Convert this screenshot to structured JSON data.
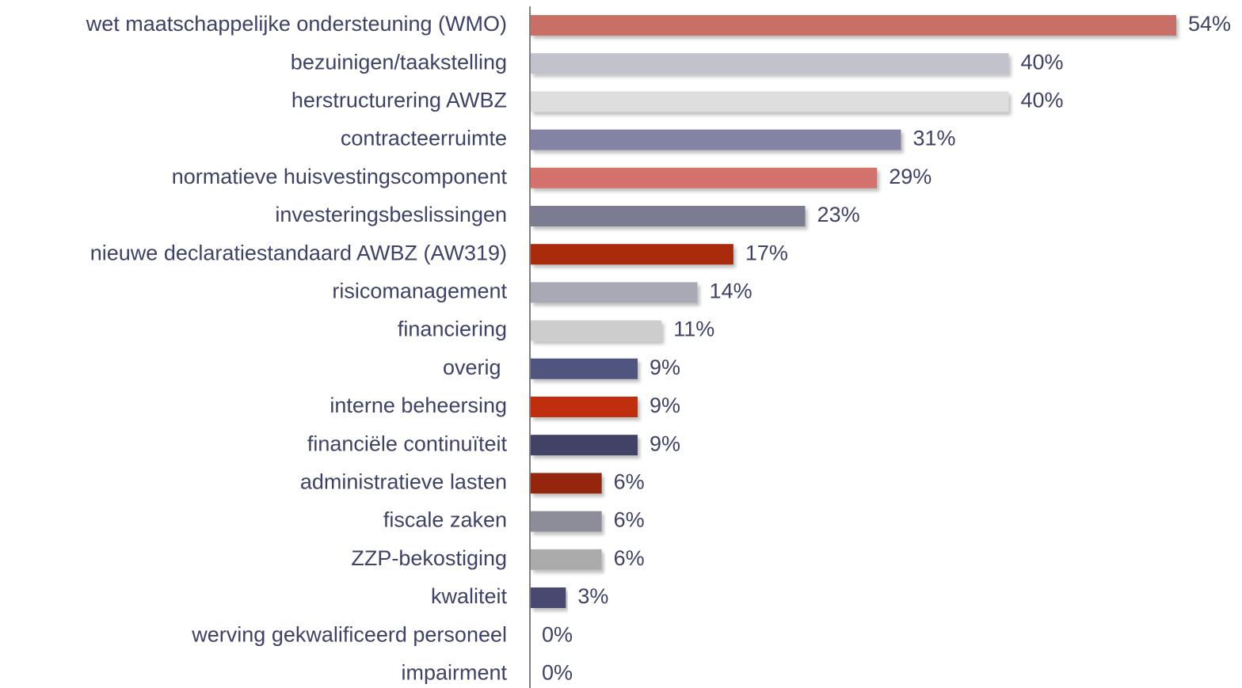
{
  "chart_data": {
    "type": "bar",
    "orientation": "horizontal",
    "categories": [
      "wet maatschappelijke ondersteuning (WMO)",
      "bezuinigen/taakstelling",
      "herstructurering AWBZ",
      "contracteerruimte",
      "normatieve huisvestingscomponent",
      "investeringsbeslissingen",
      "nieuwe declaratiestandaard AWBZ (AW319)",
      "risicomanagement",
      "financiering",
      "overig ",
      "interne beheersing",
      "financiële continuïteit",
      "administratieve lasten",
      "fiscale zaken",
      "ZZP-bekostiging",
      "kwaliteit",
      "werving gekwalificeerd personeel",
      "impairment"
    ],
    "values": [
      54,
      40,
      40,
      31,
      29,
      23,
      17,
      14,
      11,
      9,
      9,
      9,
      6,
      6,
      6,
      3,
      0,
      0
    ],
    "value_labels": [
      "54%",
      "40%",
      "40%",
      "31%",
      "29%",
      "23%",
      "17%",
      "14%",
      "11%",
      "9%",
      "9%",
      "9%",
      "6%",
      "6%",
      "6%",
      "3%",
      "0%",
      "0%"
    ],
    "colors": [
      "#c87068",
      "#c2c2ce",
      "#dedede",
      "#8283a5",
      "#d4716a",
      "#7b7b91",
      "#a92c10",
      "#a9a9b6",
      "#cdcdcd",
      "#50557f",
      "#c12f08",
      "#414366",
      "#93260f",
      "#8d8d99",
      "#ababab",
      "#464871",
      "#999999",
      "#999999"
    ]
  }
}
